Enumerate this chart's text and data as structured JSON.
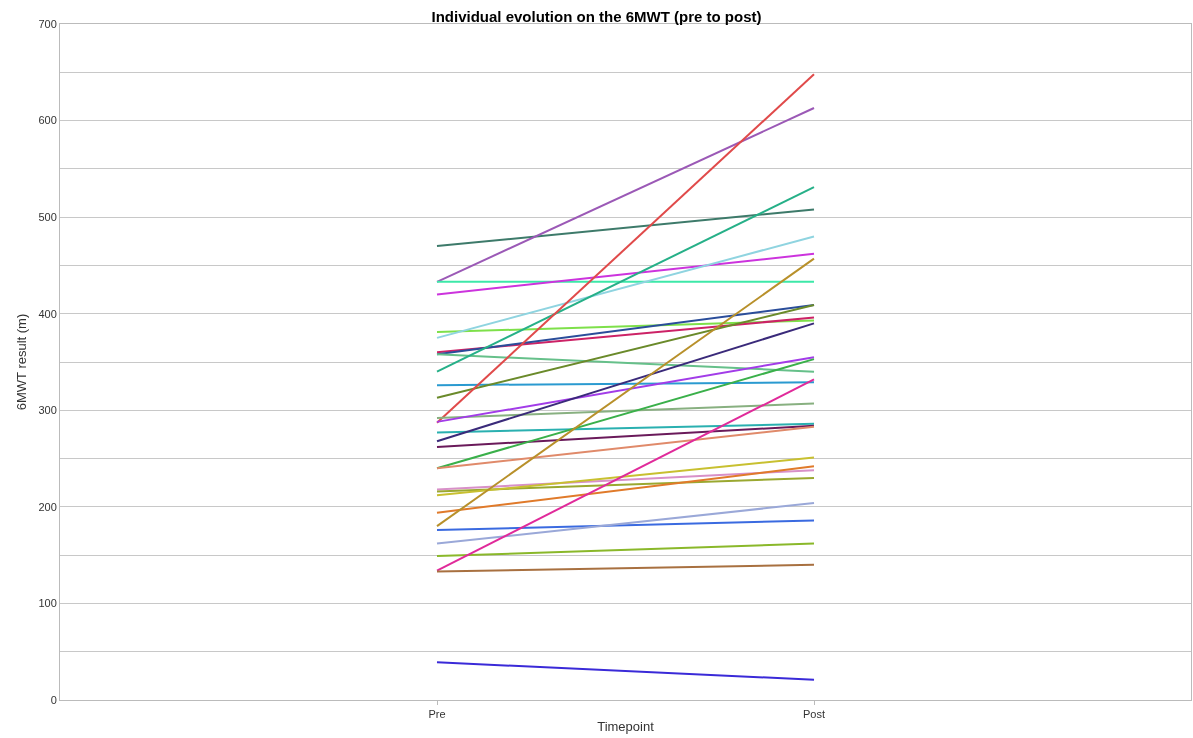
{
  "chart_data": {
    "type": "line",
    "title": "Individual evolution on the 6MWT (pre to post)",
    "xlabel": "Timepoint",
    "ylabel": "6MWT result (m)",
    "categories": [
      "Pre",
      "Post"
    ],
    "ylim": [
      0,
      700
    ],
    "yticks": [
      0,
      {
        "value": 50,
        "label": null
      },
      100,
      {
        "value": 150,
        "label": null
      },
      200,
      {
        "value": 250,
        "label": null
      },
      300,
      {
        "value": 350,
        "label": null
      },
      400,
      {
        "value": 450,
        "label": null
      },
      500,
      {
        "value": 550,
        "label": null
      },
      600,
      {
        "value": 650,
        "label": null
      },
      700
    ],
    "grid": "y",
    "marker": "none",
    "line_style": "solid",
    "series": [
      {
        "color": "#3d7a6a",
        "values": [
          470,
          508
        ]
      },
      {
        "color": "#9b59b6",
        "values": [
          433,
          613
        ]
      },
      {
        "color": "#3de8a8",
        "values": [
          433,
          433
        ]
      },
      {
        "color": "#cc33dd",
        "values": [
          420,
          462
        ]
      },
      {
        "color": "#7ee04a",
        "values": [
          381,
          393
        ]
      },
      {
        "color": "#8fd4e0",
        "values": [
          375,
          480
        ]
      },
      {
        "color": "#cc2266",
        "values": [
          360,
          396
        ]
      },
      {
        "color": "#2a4d9a",
        "values": [
          358,
          409
        ]
      },
      {
        "color": "#66c08a",
        "values": [
          358,
          340
        ]
      },
      {
        "color": "#26b088",
        "values": [
          340,
          531
        ]
      },
      {
        "color": "#2a9ad0",
        "values": [
          326,
          329
        ]
      },
      {
        "color": "#6a8a2a",
        "values": [
          313,
          409
        ]
      },
      {
        "color": "#e04a4a",
        "values": [
          287,
          648
        ]
      },
      {
        "color": "#88b080",
        "values": [
          292,
          307
        ]
      },
      {
        "color": "#a23ce8",
        "values": [
          288,
          355
        ]
      },
      {
        "color": "#2ab0b0",
        "values": [
          277,
          286
        ]
      },
      {
        "color": "#3a2a7a",
        "values": [
          268,
          390
        ]
      },
      {
        "color": "#6a1a5a",
        "values": [
          262,
          284
        ]
      },
      {
        "color": "#3ab04a",
        "values": [
          240,
          353
        ]
      },
      {
        "color": "#e08a6a",
        "values": [
          240,
          283
        ]
      },
      {
        "color": "#d890c8",
        "values": [
          218,
          238
        ]
      },
      {
        "color": "#9aa830",
        "values": [
          216,
          230
        ]
      },
      {
        "color": "#c8c030",
        "values": [
          212,
          251
        ]
      },
      {
        "color": "#e07a2a",
        "values": [
          194,
          242
        ]
      },
      {
        "color": "#b8902a",
        "values": [
          180,
          457
        ]
      },
      {
        "color": "#3a6ae0",
        "values": [
          176,
          186
        ]
      },
      {
        "color": "#9aa8d8",
        "values": [
          162,
          204
        ]
      },
      {
        "color": "#8ab82a",
        "values": [
          149,
          162
        ]
      },
      {
        "color": "#e02a9a",
        "values": [
          134,
          332
        ]
      },
      {
        "color": "#a87040",
        "values": [
          133,
          140
        ]
      },
      {
        "color": "#3a2ad8",
        "values": [
          39,
          21
        ]
      }
    ]
  }
}
